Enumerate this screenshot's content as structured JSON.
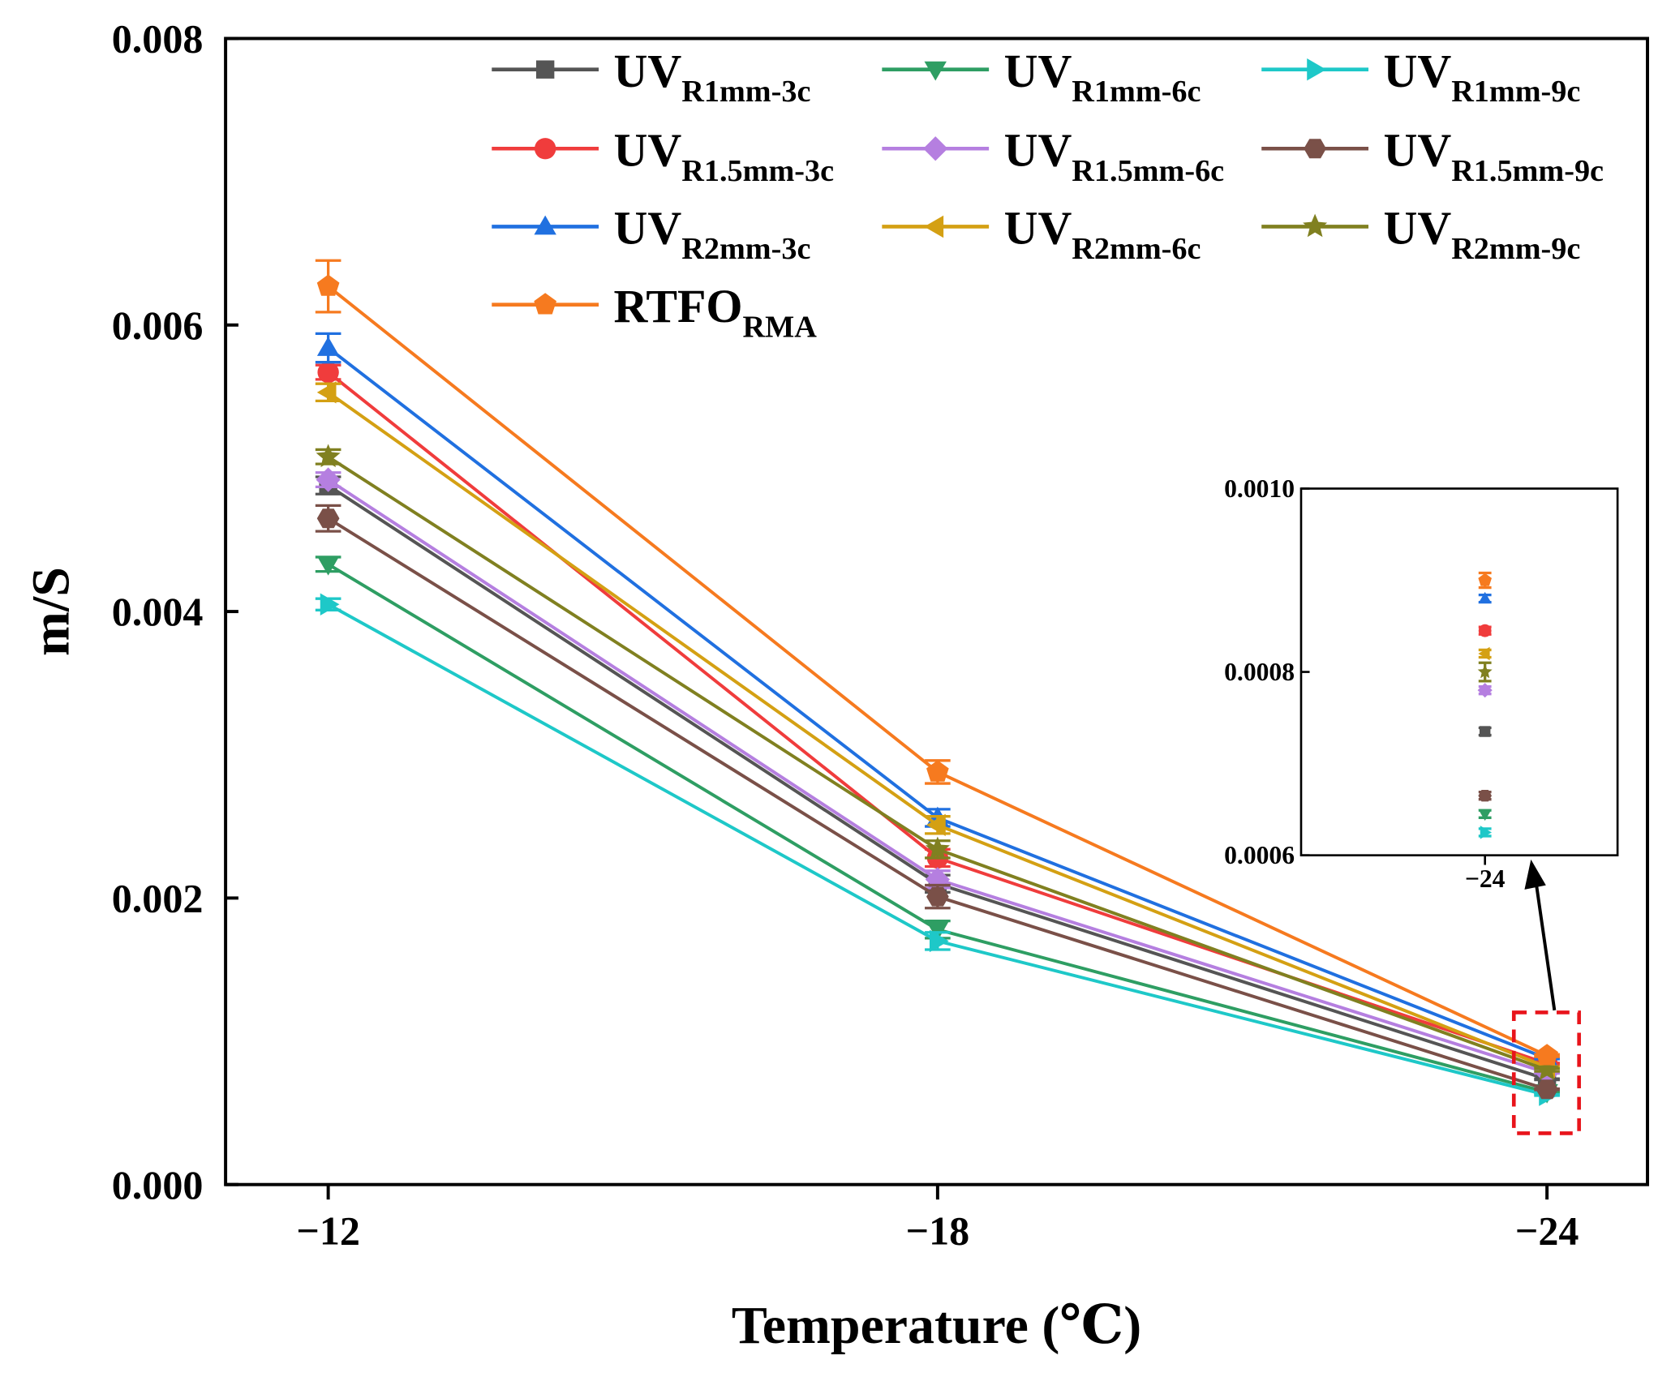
{
  "chart_data": {
    "type": "line",
    "xlabel": "Temperature (℃)",
    "ylabel": "m/S",
    "categories": [
      "−12",
      "−18",
      "−24"
    ],
    "ylim": [
      0,
      0.008
    ],
    "yticks": [
      "0.000",
      "0.002",
      "0.004",
      "0.006",
      "0.008"
    ],
    "legend_position": "top",
    "series": [
      {
        "name": "UV",
        "sub": "R1mm-3c",
        "color": "#555555",
        "marker": "square",
        "values": [
          0.00488,
          0.0021,
          0.000735
        ],
        "errors": [
          6e-05,
          6e-05,
          4e-06
        ]
      },
      {
        "name": "UV",
        "sub": "R1mm-6c",
        "color": "#2e9e63",
        "marker": "triangle-down",
        "values": [
          0.00433,
          0.00178,
          0.000645
        ],
        "errors": [
          5e-05,
          6e-05,
          4e-06
        ]
      },
      {
        "name": "UV",
        "sub": "R1mm-9c",
        "color": "#1ec8c8",
        "marker": "triangle-right",
        "values": [
          0.00405,
          0.0017,
          0.000625
        ],
        "errors": [
          4e-05,
          6e-05,
          4e-06
        ]
      },
      {
        "name": "UV",
        "sub": "R1.5mm-3c",
        "color": "#f03c3c",
        "marker": "circle",
        "values": [
          0.00567,
          0.00228,
          0.000845
        ],
        "errors": [
          5e-05,
          6e-05,
          4e-06
        ]
      },
      {
        "name": "UV",
        "sub": "R1.5mm-6c",
        "color": "#b57fe0",
        "marker": "diamond",
        "values": [
          0.00492,
          0.00213,
          0.00078
        ],
        "errors": [
          5e-05,
          6e-05,
          4e-06
        ]
      },
      {
        "name": "UV",
        "sub": "R1.5mm-9c",
        "color": "#7a5048",
        "marker": "hexagon",
        "values": [
          0.00465,
          0.00201,
          0.000665
        ],
        "errors": [
          9e-05,
          8e-05,
          4e-06
        ]
      },
      {
        "name": "UV",
        "sub": "R2mm-3c",
        "color": "#2070e0",
        "marker": "triangle-up",
        "values": [
          0.00584,
          0.00256,
          0.00088
        ],
        "errors": [
          0.0001,
          6e-05,
          4e-06
        ]
      },
      {
        "name": "UV",
        "sub": "R2mm-6c",
        "color": "#d4a013",
        "marker": "triangle-left",
        "values": [
          0.00553,
          0.00251,
          0.00082
        ],
        "errors": [
          6e-05,
          6e-05,
          4e-06
        ]
      },
      {
        "name": "UV",
        "sub": "R2mm-9c",
        "color": "#808020",
        "marker": "star",
        "values": [
          0.00508,
          0.00234,
          0.0008
        ],
        "errors": [
          5e-05,
          6e-05,
          1e-05
        ]
      },
      {
        "name": "RTFO",
        "sub": "RMA",
        "color": "#f67a1f",
        "marker": "pentagon",
        "values": [
          0.00627,
          0.00288,
          0.0009
        ],
        "errors": [
          0.00018,
          8e-05,
          8e-06
        ]
      }
    ],
    "inset": {
      "category": "−24",
      "ylim": [
        0.0006,
        0.001
      ],
      "yticks": [
        "0.0006",
        "0.0008",
        "0.0010"
      ],
      "xtick": "−24"
    }
  }
}
